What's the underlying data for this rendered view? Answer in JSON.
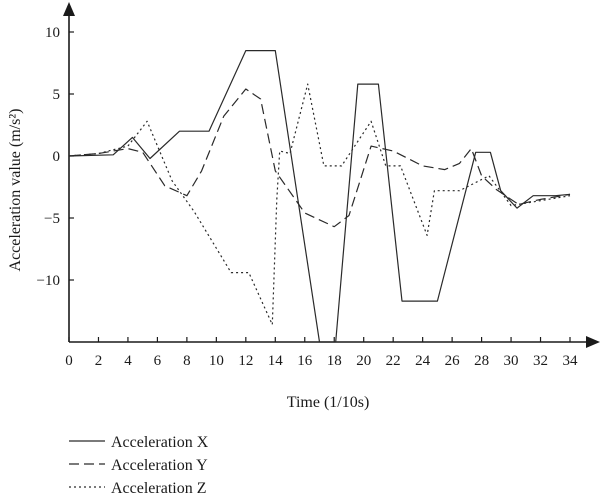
{
  "chart_data": {
    "type": "line",
    "title": "",
    "xlabel": "Time (1/10s)",
    "ylabel": "Acceleration value (m/s²)",
    "xlim": [
      0,
      34
    ],
    "ylim": [
      -15,
      10
    ],
    "xticks": [
      0,
      2,
      4,
      6,
      8,
      10,
      12,
      14,
      16,
      18,
      20,
      22,
      24,
      26,
      28,
      30,
      32,
      34
    ],
    "yticks": [
      10,
      5,
      0,
      -5,
      -10
    ],
    "grid": false,
    "legend_position": "bottom-left",
    "series": [
      {
        "name": "Acceleration X",
        "dash": "solid",
        "x": [
          0,
          3,
          4.3,
          5.5,
          7.5,
          9.5,
          12,
          14,
          17,
          18.1,
          19.6,
          21,
          22.6,
          25,
          27.6,
          28.6,
          29.3,
          30.4,
          31.5,
          33,
          34
        ],
        "y": [
          0,
          0.1,
          1.5,
          -0.2,
          2,
          2,
          8.5,
          8.5,
          -15,
          -15,
          5.8,
          5.8,
          -11.7,
          -11.7,
          0.3,
          0.3,
          -2.8,
          -4.2,
          -3.2,
          -3.2,
          -3.1
        ]
      },
      {
        "name": "Acceleration Y",
        "dash": "dashed",
        "x": [
          0,
          2,
          4,
          5,
          6.5,
          8,
          9,
          10.5,
          12,
          13,
          14,
          16,
          18,
          19,
          20.5,
          22,
          24,
          25.5,
          26.5,
          27.3,
          28,
          29,
          30.5,
          32,
          34
        ],
        "y": [
          0,
          0.2,
          0.6,
          0.3,
          -2.4,
          -3.2,
          -1.2,
          3.2,
          5.4,
          4.6,
          -1.2,
          -4.6,
          -5.7,
          -4.8,
          0.8,
          0.4,
          -0.8,
          -1.1,
          -0.6,
          0.6,
          -1.6,
          -2.7,
          -3.9,
          -3.5,
          -3.1
        ]
      },
      {
        "name": "Acceleration Z",
        "dash": "dotted",
        "x": [
          0,
          2,
          4,
          5.3,
          7,
          8.5,
          11,
          12.2,
          13.8,
          14.1,
          14.3,
          15,
          16.2,
          17.3,
          18.5,
          20.5,
          21.5,
          22.5,
          24.3,
          24.8,
          26.5,
          28.5,
          30,
          31.5,
          34
        ],
        "y": [
          0,
          0.2,
          0.8,
          2.8,
          -2.0,
          -4.5,
          -9.4,
          -9.4,
          -13.6,
          -3.5,
          0.4,
          0.2,
          5.8,
          -0.8,
          -0.8,
          2.8,
          -0.8,
          -0.8,
          -6.4,
          -2.8,
          -2.8,
          -1.6,
          -4.0,
          -3.7,
          -3.2
        ]
      }
    ]
  }
}
